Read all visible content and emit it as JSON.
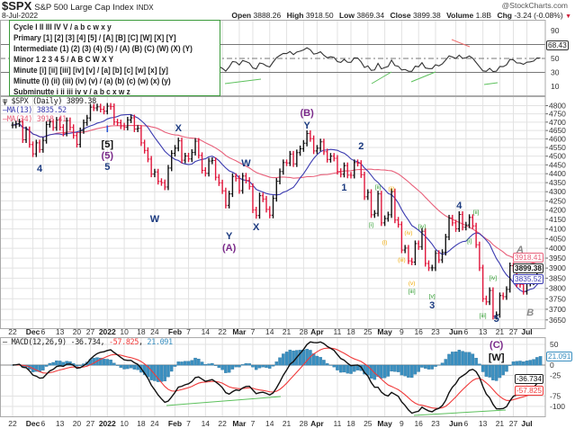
{
  "header": {
    "symbol": "$SPX",
    "name": "S&P 500 Large Cap Index",
    "exchange": "INDX",
    "date": "8-Jul-2022",
    "watermark": "@StockCharts.com",
    "open_label": "Open",
    "open": "3888.26",
    "high_label": "High",
    "high": "3918.50",
    "low_label": "Low",
    "low": "3869.34",
    "close_label": "Close",
    "close": "3899.38",
    "volume_label": "Volume",
    "volume": "1.8B",
    "chg_label": "Chg",
    "chg": "-3.24 (-0.08%)",
    "chg_arrow": "▼"
  },
  "legend": {
    "lines": [
      {
        "text": "Cycle I II III IV V / a b c w x y",
        "color": "#2a55d6"
      },
      {
        "text": "Primary [1] [2] [3] [4] [5] / [A] [B] [C] [W] [X] [Y]",
        "color": "#111111"
      },
      {
        "text": "Intermediate (1) (2) (3) (4) (5) / (A) (B) (C) (W) (X) (Y)",
        "color": "#7a2a8a"
      },
      {
        "text": "Minor 1 2 3 4 5 / A B C W X Y",
        "color": "#1c3b80"
      },
      {
        "text": "Minute [i] [ii] [iii] [iv] [v] / [a] [b] [c] [w] [x] [y]",
        "color": "#2a9a2a"
      },
      {
        "text": "Minutte (i) (ii) (iii) (iv) (v) / (a) (b) (c) (w) (x) (y)",
        "color": "#f0a800"
      },
      {
        "text": "Subminutte i ii iii iv v / a b c x w z",
        "color": "#8a8a8a"
      }
    ]
  },
  "chart_data": {
    "type": "bar",
    "scale": "log",
    "price_legend": {
      "title": "$SPX (Daily) 3899.38",
      "ma13": "MA(13) 3835.52",
      "ma34": "MA(34) 3918.41"
    },
    "last_values": {
      "close": "3899.38",
      "ma13": "3835.52",
      "ma34": "3918.41",
      "rsi": "68.43"
    },
    "colors": {
      "up": "#111111",
      "down": "#e0173c",
      "ma13": "#3b3bb0",
      "ma34": "#e8607a",
      "rsi_line": "#333333",
      "rsi_high_fill": "#4f7d50",
      "rsi_low_fill": "#8a4545",
      "hist": "#3a8fc0",
      "macd": "#111111",
      "signal": "#f03a3a",
      "trendline_up": "#5cc05c",
      "trendline_down": "#f07070",
      "grid": "#e2e2e2"
    },
    "price_ticks": [
      4800,
      4750,
      4700,
      4650,
      4600,
      4550,
      4500,
      4450,
      4400,
      4350,
      4300,
      4250,
      4200,
      4150,
      4100,
      4050,
      4000,
      3950,
      3900,
      3850,
      3800,
      3750,
      3700,
      3650
    ],
    "x_ticks": [
      {
        "label": "22",
        "date": "2021-11-22",
        "bold": false
      },
      {
        "label": "Dec",
        "date": "2021-12-01",
        "bold": true
      },
      {
        "label": "6",
        "date": "2021-12-06",
        "bold": false
      },
      {
        "label": "13",
        "date": "2021-12-13",
        "bold": false
      },
      {
        "label": "20",
        "date": "2021-12-20",
        "bold": false
      },
      {
        "label": "27",
        "date": "2021-12-27",
        "bold": false
      },
      {
        "label": "2022",
        "date": "2022-01-03",
        "bold": true
      },
      {
        "label": "10",
        "date": "2022-01-10",
        "bold": false
      },
      {
        "label": "18",
        "date": "2022-01-18",
        "bold": false
      },
      {
        "label": "24",
        "date": "2022-01-24",
        "bold": false
      },
      {
        "label": "Feb",
        "date": "2022-02-01",
        "bold": true
      },
      {
        "label": "7",
        "date": "2022-02-07",
        "bold": false
      },
      {
        "label": "14",
        "date": "2022-02-14",
        "bold": false
      },
      {
        "label": "22",
        "date": "2022-02-22",
        "bold": false
      },
      {
        "label": "Mar",
        "date": "2022-03-01",
        "bold": true
      },
      {
        "label": "7",
        "date": "2022-03-07",
        "bold": false
      },
      {
        "label": "14",
        "date": "2022-03-14",
        "bold": false
      },
      {
        "label": "21",
        "date": "2022-03-21",
        "bold": false
      },
      {
        "label": "28",
        "date": "2022-03-28",
        "bold": false
      },
      {
        "label": "Apr",
        "date": "2022-04-01",
        "bold": true
      },
      {
        "label": "11",
        "date": "2022-04-11",
        "bold": false
      },
      {
        "label": "18",
        "date": "2022-04-18",
        "bold": false
      },
      {
        "label": "25",
        "date": "2022-04-25",
        "bold": false
      },
      {
        "label": "May",
        "date": "2022-05-02",
        "bold": true
      },
      {
        "label": "9",
        "date": "2022-05-09",
        "bold": false
      },
      {
        "label": "16",
        "date": "2022-05-16",
        "bold": false
      },
      {
        "label": "23",
        "date": "2022-05-23",
        "bold": false
      },
      {
        "label": "Jun",
        "date": "2022-06-01",
        "bold": true
      },
      {
        "label": "6",
        "date": "2022-06-06",
        "bold": false
      },
      {
        "label": "13",
        "date": "2022-06-13",
        "bold": false
      },
      {
        "label": "21",
        "date": "2022-06-21",
        "bold": false
      },
      {
        "label": "27",
        "date": "2022-06-27",
        "bold": false
      },
      {
        "label": "Jul",
        "date": "2022-07-01",
        "bold": true
      }
    ],
    "bars": [
      [
        "2021-11-22",
        4682
      ],
      [
        "2021-11-23",
        4690
      ],
      [
        "2021-11-24",
        4701
      ],
      [
        "2021-11-26",
        4595
      ],
      [
        "2021-11-29",
        4655
      ],
      [
        "2021-11-30",
        4567
      ],
      [
        "2021-12-01",
        4513
      ],
      [
        "2021-12-02",
        4577
      ],
      [
        "2021-12-03",
        4538
      ],
      [
        "2021-12-06",
        4591
      ],
      [
        "2021-12-07",
        4686
      ],
      [
        "2021-12-08",
        4701
      ],
      [
        "2021-12-09",
        4667
      ],
      [
        "2021-12-10",
        4712
      ],
      [
        "2021-12-13",
        4669
      ],
      [
        "2021-12-14",
        4634
      ],
      [
        "2021-12-15",
        4709
      ],
      [
        "2021-12-16",
        4668
      ],
      [
        "2021-12-17",
        4620
      ],
      [
        "2021-12-20",
        4568
      ],
      [
        "2021-12-21",
        4649
      ],
      [
        "2021-12-22",
        4697
      ],
      [
        "2021-12-23",
        4725
      ],
      [
        "2021-12-27",
        4791
      ],
      [
        "2021-12-28",
        4786
      ],
      [
        "2021-12-29",
        4793
      ],
      [
        "2021-12-30",
        4778
      ],
      [
        "2021-12-31",
        4766
      ],
      [
        "2022-01-03",
        4797
      ],
      [
        "2022-01-04",
        4794
      ],
      [
        "2022-01-05",
        4701
      ],
      [
        "2022-01-06",
        4696
      ],
      [
        "2022-01-07",
        4677
      ],
      [
        "2022-01-10",
        4670
      ],
      [
        "2022-01-11",
        4713
      ],
      [
        "2022-01-12",
        4726
      ],
      [
        "2022-01-13",
        4659
      ],
      [
        "2022-01-14",
        4663
      ],
      [
        "2022-01-18",
        4577
      ],
      [
        "2022-01-19",
        4533
      ],
      [
        "2022-01-20",
        4483
      ],
      [
        "2022-01-21",
        4398
      ],
      [
        "2022-01-24",
        4410
      ],
      [
        "2022-01-25",
        4357
      ],
      [
        "2022-01-26",
        4350
      ],
      [
        "2022-01-27",
        4326
      ],
      [
        "2022-01-28",
        4432
      ],
      [
        "2022-01-31",
        4516
      ],
      [
        "2022-02-01",
        4546
      ],
      [
        "2022-02-02",
        4589
      ],
      [
        "2022-02-03",
        4477
      ],
      [
        "2022-02-04",
        4501
      ],
      [
        "2022-02-07",
        4484
      ],
      [
        "2022-02-08",
        4522
      ],
      [
        "2022-02-09",
        4587
      ],
      [
        "2022-02-10",
        4504
      ],
      [
        "2022-02-11",
        4419
      ],
      [
        "2022-02-14",
        4402
      ],
      [
        "2022-02-15",
        4472
      ],
      [
        "2022-02-16",
        4475
      ],
      [
        "2022-02-17",
        4380
      ],
      [
        "2022-02-18",
        4349
      ],
      [
        "2022-02-22",
        4305
      ],
      [
        "2022-02-23",
        4226
      ],
      [
        "2022-02-24",
        4288
      ],
      [
        "2022-02-25",
        4385
      ],
      [
        "2022-02-28",
        4374
      ],
      [
        "2022-03-01",
        4306
      ],
      [
        "2022-03-02",
        4387
      ],
      [
        "2022-03-03",
        4363
      ],
      [
        "2022-03-04",
        4329
      ],
      [
        "2022-03-07",
        4201
      ],
      [
        "2022-03-08",
        4171
      ],
      [
        "2022-03-09",
        4278
      ],
      [
        "2022-03-10",
        4260
      ],
      [
        "2022-03-11",
        4204
      ],
      [
        "2022-03-14",
        4173
      ],
      [
        "2022-03-15",
        4263
      ],
      [
        "2022-03-16",
        4358
      ],
      [
        "2022-03-17",
        4412
      ],
      [
        "2022-03-18",
        4463
      ],
      [
        "2022-03-21",
        4461
      ],
      [
        "2022-03-22",
        4512
      ],
      [
        "2022-03-23",
        4456
      ],
      [
        "2022-03-24",
        4520
      ],
      [
        "2022-03-25",
        4543
      ],
      [
        "2022-03-28",
        4575
      ],
      [
        "2022-03-29",
        4632
      ],
      [
        "2022-03-30",
        4602
      ],
      [
        "2022-03-31",
        4530
      ],
      [
        "2022-04-01",
        4546
      ],
      [
        "2022-04-04",
        4583
      ],
      [
        "2022-04-05",
        4525
      ],
      [
        "2022-04-06",
        4481
      ],
      [
        "2022-04-07",
        4500
      ],
      [
        "2022-04-08",
        4488
      ],
      [
        "2022-04-11",
        4413
      ],
      [
        "2022-04-12",
        4397
      ],
      [
        "2022-04-13",
        4446
      ],
      [
        "2022-04-14",
        4392
      ],
      [
        "2022-04-18",
        4391
      ],
      [
        "2022-04-19",
        4463
      ],
      [
        "2022-04-20",
        4459
      ],
      [
        "2022-04-21",
        4394
      ],
      [
        "2022-04-22",
        4272
      ],
      [
        "2022-04-25",
        4296
      ],
      [
        "2022-04-26",
        4175
      ],
      [
        "2022-04-27",
        4183
      ],
      [
        "2022-04-28",
        4288
      ],
      [
        "2022-04-29",
        4132
      ],
      [
        "2022-05-02",
        4155
      ],
      [
        "2022-05-03",
        4175
      ],
      [
        "2022-05-04",
        4300
      ],
      [
        "2022-05-05",
        4147
      ],
      [
        "2022-05-06",
        4123
      ],
      [
        "2022-05-09",
        3991
      ],
      [
        "2022-05-10",
        4001
      ],
      [
        "2022-05-11",
        3936
      ],
      [
        "2022-05-12",
        3930
      ],
      [
        "2022-05-13",
        4024
      ],
      [
        "2022-05-16",
        4008
      ],
      [
        "2022-05-17",
        4088
      ],
      [
        "2022-05-18",
        3923
      ],
      [
        "2022-05-19",
        3901
      ],
      [
        "2022-05-20",
        3901
      ],
      [
        "2022-05-23",
        3974
      ],
      [
        "2022-05-24",
        3941
      ],
      [
        "2022-05-25",
        3979
      ],
      [
        "2022-05-26",
        4058
      ],
      [
        "2022-05-27",
        4158
      ],
      [
        "2022-05-31",
        4132
      ],
      [
        "2022-06-01",
        4101
      ],
      [
        "2022-06-02",
        4177
      ],
      [
        "2022-06-03",
        4109
      ],
      [
        "2022-06-06",
        4121
      ],
      [
        "2022-06-07",
        4161
      ],
      [
        "2022-06-08",
        4116
      ],
      [
        "2022-06-09",
        4018
      ],
      [
        "2022-06-10",
        3901
      ],
      [
        "2022-06-13",
        3750
      ],
      [
        "2022-06-14",
        3735
      ],
      [
        "2022-06-15",
        3790
      ],
      [
        "2022-06-16",
        3667
      ],
      [
        "2022-06-17",
        3675
      ],
      [
        "2022-06-21",
        3765
      ],
      [
        "2022-06-22",
        3760
      ],
      [
        "2022-06-23",
        3795
      ],
      [
        "2022-06-24",
        3912
      ],
      [
        "2022-06-27",
        3900
      ],
      [
        "2022-06-28",
        3821
      ],
      [
        "2022-06-29",
        3819
      ],
      [
        "2022-06-30",
        3785
      ],
      [
        "2022-07-01",
        3825
      ],
      [
        "2022-07-05",
        3831
      ],
      [
        "2022-07-06",
        3845
      ],
      [
        "2022-07-07",
        3902
      ],
      [
        "2022-07-08",
        3899
      ]
    ],
    "wave_labels": [
      {
        "text": "4",
        "date": "2021-12-03",
        "price": 4431,
        "degree": "minor"
      },
      {
        "text": "I",
        "date": "2022-01-03",
        "price": 4661,
        "degree": "cycle"
      },
      {
        "text": "[5]",
        "date": "2022-01-03",
        "price": 4571,
        "degree": "primary"
      },
      {
        "text": "(5)",
        "date": "2022-01-03",
        "price": 4509,
        "degree": "intermediate"
      },
      {
        "text": "5",
        "date": "2022-01-03",
        "price": 4442,
        "degree": "minor"
      },
      {
        "text": "W",
        "date": "2022-01-24",
        "price": 4155,
        "degree": "minor"
      },
      {
        "text": "X",
        "date": "2022-02-02",
        "price": 4667,
        "degree": "minor"
      },
      {
        "text": "Y",
        "date": "2022-02-24",
        "price": 4066,
        "degree": "minor"
      },
      {
        "text": "(A)",
        "date": "2022-02-24",
        "price": 4006,
        "degree": "intermediate"
      },
      {
        "text": "W",
        "date": "2022-03-03",
        "price": 4462,
        "degree": "minor"
      },
      {
        "text": "X",
        "date": "2022-03-08",
        "price": 4113,
        "degree": "minor"
      },
      {
        "text": "(B)",
        "date": "2022-03-29",
        "price": 4759,
        "degree": "intermediate"
      },
      {
        "text": "Y",
        "date": "2022-03-29",
        "price": 4683,
        "degree": "minor"
      },
      {
        "text": "1",
        "date": "2022-04-13",
        "price": 4326,
        "degree": "minor"
      },
      {
        "text": "2",
        "date": "2022-04-21",
        "price": 4560,
        "degree": "minor"
      },
      {
        "text": "[i]",
        "date": "2022-04-26",
        "price": 4132,
        "degree": "minute"
      },
      {
        "text": "[ii]",
        "date": "2022-04-28",
        "price": 4336,
        "degree": "minute"
      },
      {
        "text": "(i)",
        "date": "2022-05-02",
        "price": 4039,
        "degree": "minutte"
      },
      {
        "text": "(ii)",
        "date": "2022-05-04",
        "price": 4326,
        "degree": "minutte"
      },
      {
        "text": "(iii)",
        "date": "2022-05-09",
        "price": 3950,
        "degree": "minutte"
      },
      {
        "text": "(iv)",
        "date": "2022-05-11",
        "price": 4089,
        "degree": "minutte"
      },
      {
        "text": "(v)",
        "date": "2022-05-12",
        "price": 3833,
        "degree": "minutte"
      },
      {
        "text": "[iii]",
        "date": "2022-05-12",
        "price": 3794,
        "degree": "minute"
      },
      {
        "text": "[iv]",
        "date": "2022-05-17",
        "price": 4122,
        "degree": "minute"
      },
      {
        "text": "[v]",
        "date": "2022-05-20",
        "price": 3770,
        "degree": "minute"
      },
      {
        "text": "3",
        "date": "2022-05-20",
        "price": 3734,
        "degree": "minor"
      },
      {
        "text": "4",
        "date": "2022-06-02",
        "price": 4227,
        "degree": "minor"
      },
      {
        "text": "[i]",
        "date": "2022-06-07",
        "price": 4046,
        "degree": "minute"
      },
      {
        "text": "[ii]",
        "date": "2022-06-09",
        "price": 4198,
        "degree": "minute"
      },
      {
        "text": "[iii]",
        "date": "2022-06-13",
        "price": 3679,
        "degree": "minute"
      },
      {
        "text": "[iv]",
        "date": "2022-06-16",
        "price": 3861,
        "degree": "minute"
      },
      {
        "text": "5",
        "date": "2022-06-17",
        "price": 3591,
        "degree": "minor"
      },
      {
        "text": "(C)",
        "date": "2022-06-17",
        "price": 3537,
        "degree": "intermediate"
      },
      {
        "text": "[W]",
        "date": "2022-06-17",
        "price": 3482,
        "degree": "primary"
      },
      {
        "text": "A",
        "date": "2022-06-29",
        "price": 3996,
        "degree": "subminutte"
      },
      {
        "text": "B",
        "date": "2022-07-05",
        "price": 3686,
        "degree": "subminutte"
      }
    ],
    "degree_colors": {
      "cycle": "#2a55d6",
      "primary": "#111111",
      "intermediate": "#7a2a8a",
      "minor": "#1c3b80",
      "minute": "#2a9a2a",
      "minutte": "#f0a800",
      "subminutte": "#8a8a8a"
    },
    "rsi": {
      "period": 14,
      "ticks": [
        90,
        50,
        30,
        10
      ],
      "levels": [
        70,
        50,
        30
      ]
    },
    "macd": {
      "params": [
        12,
        26,
        9
      ],
      "label": "MACD(12,26,9)",
      "macd_value": "-36.734",
      "signal_value": "-57.825",
      "hist_value": "21.091",
      "ticks": [
        "50",
        "0",
        "-25",
        "-75",
        "-100"
      ]
    }
  }
}
